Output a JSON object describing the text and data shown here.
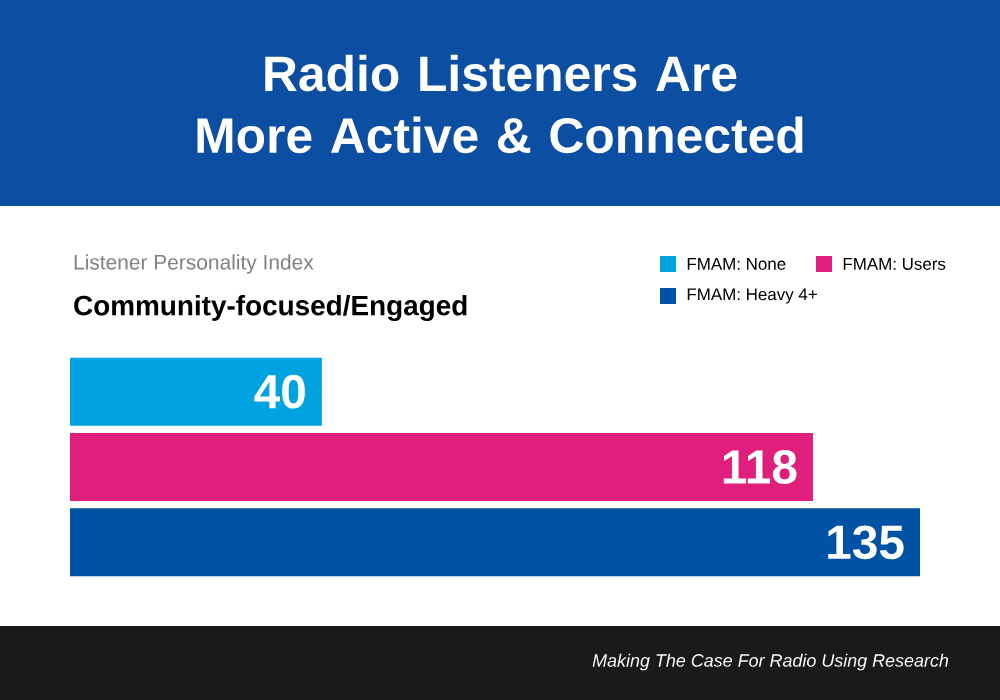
{
  "chart_data": {
    "type": "bar",
    "orientation": "horizontal",
    "title": "Radio Listeners Are\nMore Active & Connected",
    "subtitle": "Listener Personality Index",
    "annotations": [
      "Community-focused/Engaged",
      "Making The Case For Radio Using Research"
    ],
    "categories": [
      null
    ],
    "legend": "top right",
    "data_labels": true,
    "series": [
      {
        "name": "FMAM: None",
        "color": "#00a3e0",
        "values": [
          40
        ]
      },
      {
        "name": "FMAM: Users",
        "color": "#e01f7d",
        "values": [
          118
        ]
      },
      {
        "name": "FMAM: Heavy 4+",
        "color": "#0052a5",
        "values": [
          135
        ]
      }
    ]
  }
}
